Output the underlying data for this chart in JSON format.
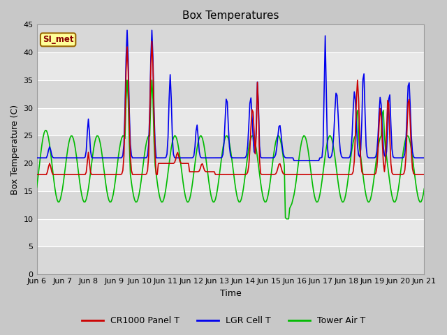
{
  "title": "Box Temperatures",
  "xlabel": "Time",
  "ylabel": "Box Temperature (C)",
  "ylim": [
    0,
    45
  ],
  "yticks": [
    0,
    5,
    10,
    15,
    20,
    25,
    30,
    35,
    40,
    45
  ],
  "colors": {
    "cr1000": "#cc0000",
    "lgr": "#0000ee",
    "tower": "#00bb00"
  },
  "legend_labels": [
    "CR1000 Panel T",
    "LGR Cell T",
    "Tower Air T"
  ],
  "annotation_text": "SI_met",
  "annotation_bg": "#ffff99",
  "annotation_border": "#996600",
  "x_dates": [
    "Jun 6",
    "Jun 7",
    "Jun 8",
    "Jun 9",
    "Jun 10",
    "Jun 11",
    "Jun 12",
    "Jun 13",
    "Jun 14",
    "Jun 15",
    "Jun 16",
    "Jun 17",
    "Jun 18",
    "Jun 19",
    "Jun 20",
    "Jun 21"
  ]
}
